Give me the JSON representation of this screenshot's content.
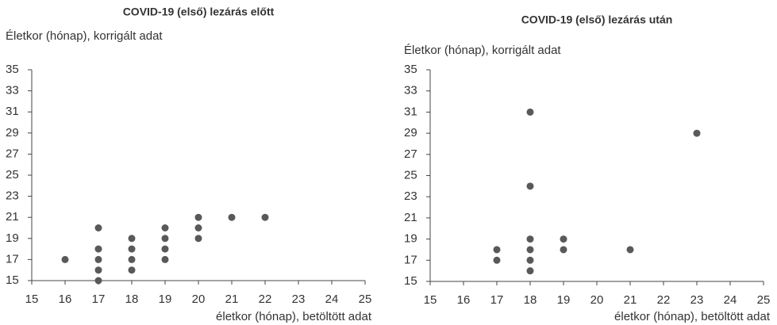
{
  "chart_data": [
    {
      "type": "scatter",
      "title": "COVID-19 (első) lezárás előtt",
      "y_label": "Életkor (hónap), korrigált adat",
      "x_label": "életkor (hónap), betöltött adat",
      "x": [
        16,
        17,
        17,
        17,
        17,
        17,
        18,
        18,
        18,
        18,
        19,
        19,
        19,
        19,
        20,
        20,
        20,
        21,
        22
      ],
      "y": [
        17,
        20,
        18,
        17,
        16,
        15,
        19,
        18,
        17,
        16,
        20,
        19,
        18,
        17,
        21,
        20,
        19,
        21,
        21
      ],
      "color": "#595959",
      "xlim": [
        15,
        25
      ],
      "xticks": [
        15,
        16,
        17,
        18,
        19,
        20,
        21,
        22,
        23,
        24,
        25
      ],
      "ylim": [
        15,
        35
      ],
      "yticks": [
        15,
        17,
        19,
        21,
        23,
        25,
        27,
        29,
        31,
        33,
        35
      ]
    },
    {
      "type": "scatter",
      "title": "COVID-19 (első) lezárás után",
      "y_label": "Életkor (hónap), korrigált adat",
      "x_label": "életkor (hónap), betöltött adat",
      "x": [
        17,
        17,
        18,
        18,
        18,
        18,
        18,
        18,
        19,
        19,
        21,
        23
      ],
      "y": [
        18,
        17,
        31,
        24,
        19,
        18,
        17,
        16,
        19,
        18,
        18,
        29
      ],
      "color": "#595959",
      "xlim": [
        15,
        25
      ],
      "xticks": [
        15,
        16,
        17,
        18,
        19,
        20,
        21,
        22,
        23,
        24,
        25
      ],
      "ylim": [
        15,
        35
      ],
      "yticks": [
        15,
        17,
        19,
        21,
        23,
        25,
        27,
        29,
        31,
        33,
        35
      ]
    }
  ]
}
